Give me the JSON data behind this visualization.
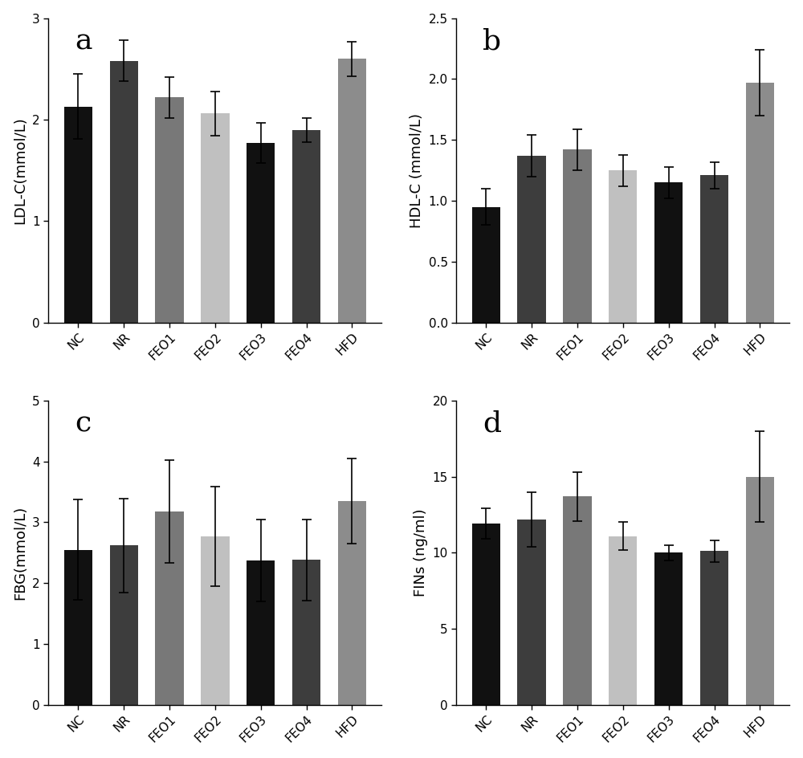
{
  "categories": [
    "NC",
    "NR",
    "FEO1",
    "FEO2",
    "FEO3",
    "FEO4",
    "HFD"
  ],
  "bar_colors": [
    "#111111",
    "#3d3d3d",
    "#787878",
    "#c0c0c0",
    "#111111",
    "#3d3d3d",
    "#8c8c8c"
  ],
  "panel_a": {
    "title": "a",
    "ylabel": "LDL-C(mmol/L)",
    "ylim": [
      0,
      3
    ],
    "yticks": [
      0,
      1,
      2,
      3
    ],
    "values": [
      2.13,
      2.58,
      2.22,
      2.06,
      1.77,
      1.9,
      2.6
    ],
    "errors": [
      0.32,
      0.2,
      0.2,
      0.22,
      0.2,
      0.12,
      0.17
    ]
  },
  "panel_b": {
    "title": "b",
    "ylabel": "HDL-C (mmol/L)",
    "ylim": [
      0.0,
      2.5
    ],
    "yticks": [
      0.0,
      0.5,
      1.0,
      1.5,
      2.0,
      2.5
    ],
    "values": [
      0.95,
      1.37,
      1.42,
      1.25,
      1.15,
      1.21,
      1.97
    ],
    "errors": [
      0.15,
      0.17,
      0.17,
      0.13,
      0.13,
      0.11,
      0.27
    ]
  },
  "panel_c": {
    "title": "c",
    "ylabel": "FBG(mmol/L)",
    "ylim": [
      0,
      5
    ],
    "yticks": [
      0,
      1,
      2,
      3,
      4,
      5
    ],
    "values": [
      2.55,
      2.62,
      3.18,
      2.77,
      2.37,
      2.38,
      3.35
    ],
    "errors": [
      0.82,
      0.77,
      0.84,
      0.82,
      0.67,
      0.67,
      0.7
    ]
  },
  "panel_d": {
    "title": "d",
    "ylabel": "FINs (ng/ml)",
    "ylim": [
      0,
      20
    ],
    "yticks": [
      0,
      5,
      10,
      15,
      20
    ],
    "values": [
      11.9,
      12.2,
      13.7,
      11.1,
      10.0,
      10.1,
      15.0
    ],
    "errors": [
      1.0,
      1.8,
      1.6,
      0.9,
      0.5,
      0.7,
      3.0
    ]
  },
  "background_color": "#ffffff",
  "bar_width": 0.62,
  "title_fontsize": 26,
  "label_fontsize": 13,
  "tick_fontsize": 11
}
